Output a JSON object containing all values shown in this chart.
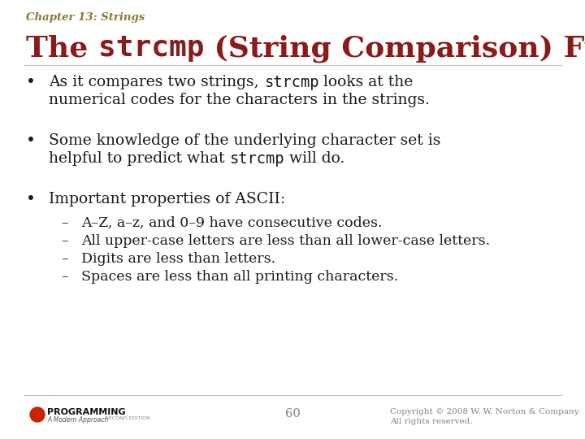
{
  "background_color": "#ffffff",
  "chapter_label": "Chapter 13: Strings",
  "chapter_color": "#8B7536",
  "chapter_fontsize": 9.5,
  "title_color": "#8B1A1A",
  "title_fontsize": 26,
  "bullet_color": "#1a1a1a",
  "bullet_fontsize": 13.5,
  "sub_bullet_fontsize": 12.5,
  "sub_bullets": [
    "A–Z, a–z, and 0–9 have consecutive codes.",
    "All upper-case letters are less than all lower-case letters.",
    "Digits are less than letters.",
    "Spaces are less than all printing characters."
  ],
  "footer_page": "60",
  "footer_copyright": "Copyright © 2008 W. W. Norton & Company.\nAll rights reserved.",
  "footer_color": "#808080",
  "footer_fontsize": 7.5
}
